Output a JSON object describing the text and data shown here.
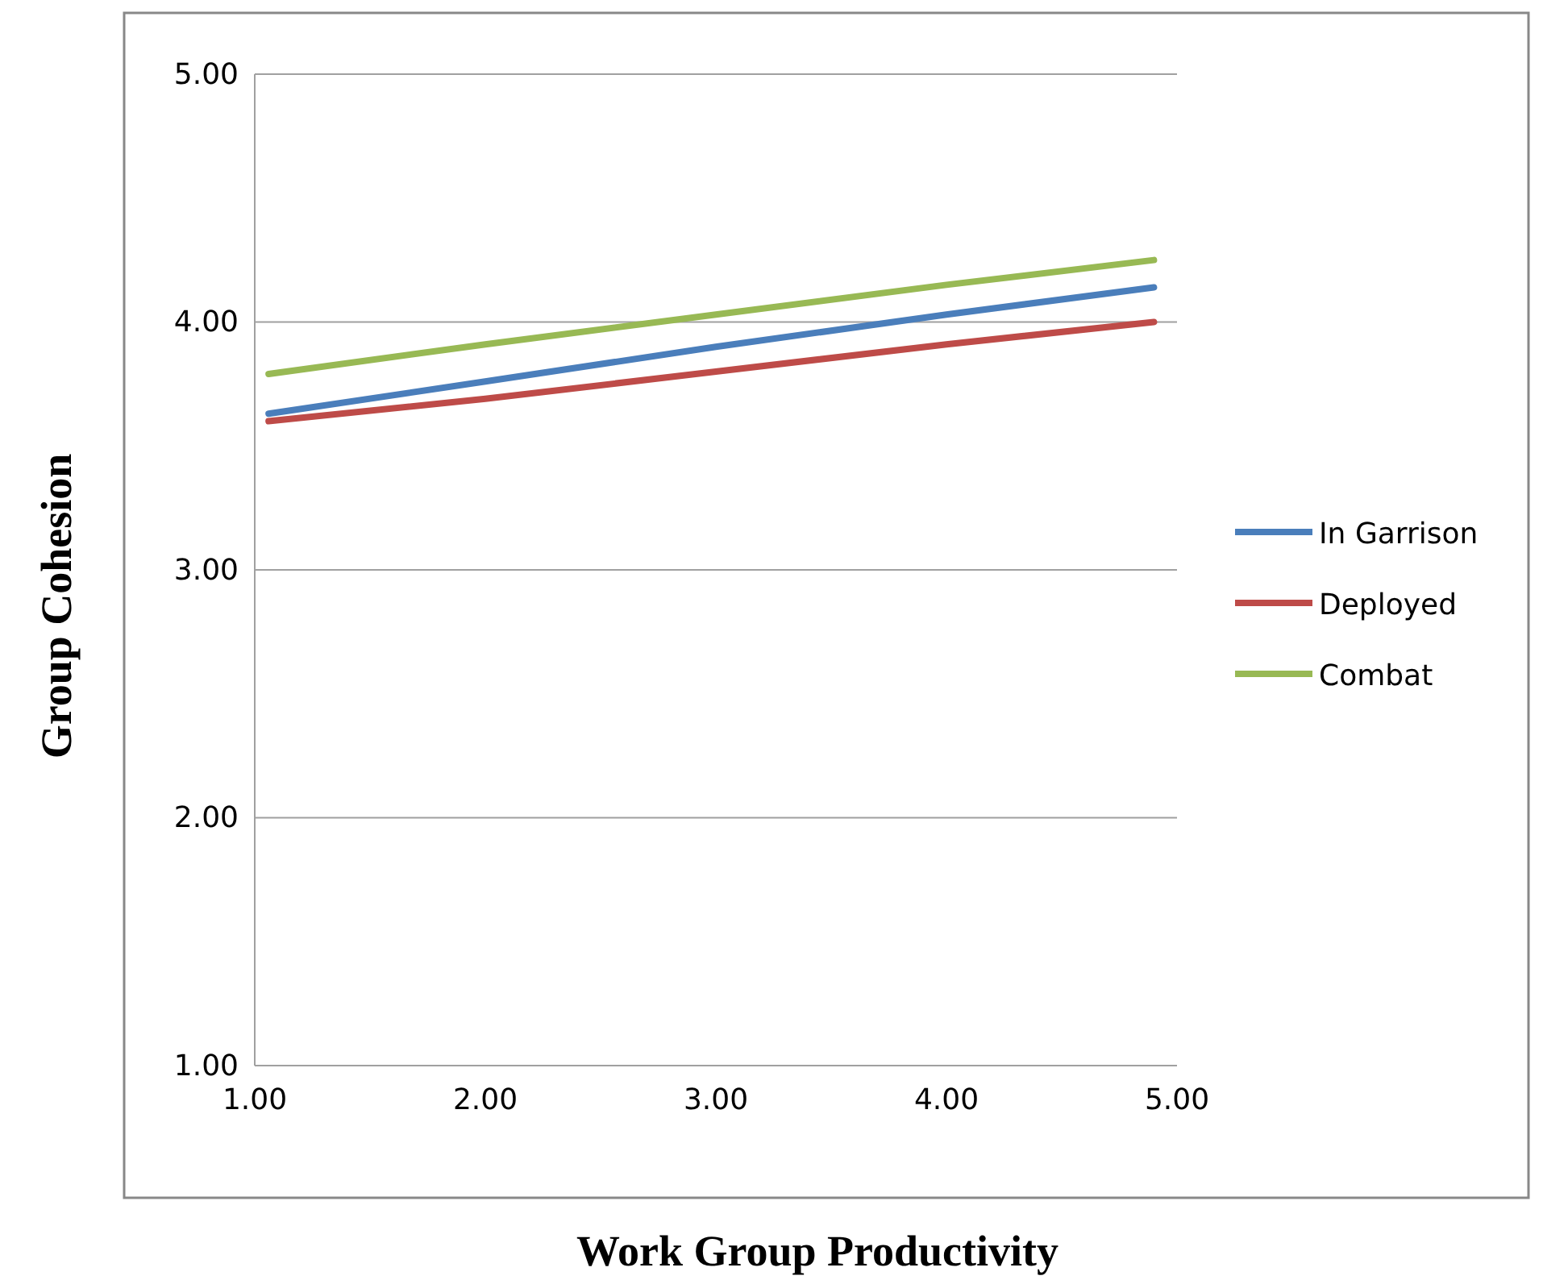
{
  "chart_data": {
    "type": "line",
    "xlabel": "Work Group Productivity",
    "ylabel": "Group Cohesion",
    "xlim": [
      1,
      5
    ],
    "ylim": [
      1,
      5
    ],
    "xticks": [
      {
        "value": 1,
        "label": "1.00"
      },
      {
        "value": 2,
        "label": "2.00"
      },
      {
        "value": 3,
        "label": "3.00"
      },
      {
        "value": 4,
        "label": "4.00"
      },
      {
        "value": 5,
        "label": "5.00"
      }
    ],
    "yticks": [
      {
        "value": 1,
        "label": "1.00"
      },
      {
        "value": 2,
        "label": "2.00"
      },
      {
        "value": 3,
        "label": "3.00"
      },
      {
        "value": 4,
        "label": "4.00"
      },
      {
        "value": 5,
        "label": "5.00"
      }
    ],
    "x": [
      1.06,
      2,
      3,
      4,
      4.9
    ],
    "series": [
      {
        "name": "In Garrison",
        "color": "#4a7ebb",
        "values": [
          3.63,
          3.76,
          3.9,
          4.03,
          4.14
        ]
      },
      {
        "name": "Deployed",
        "color": "#be4b48",
        "values": [
          3.6,
          3.69,
          3.8,
          3.91,
          4.0
        ]
      },
      {
        "name": "Combat",
        "color": "#98b954",
        "values": [
          3.79,
          3.91,
          4.03,
          4.15,
          4.25
        ]
      }
    ],
    "grid": "y",
    "legend": "right",
    "line_style": "solid",
    "marker": "none"
  }
}
